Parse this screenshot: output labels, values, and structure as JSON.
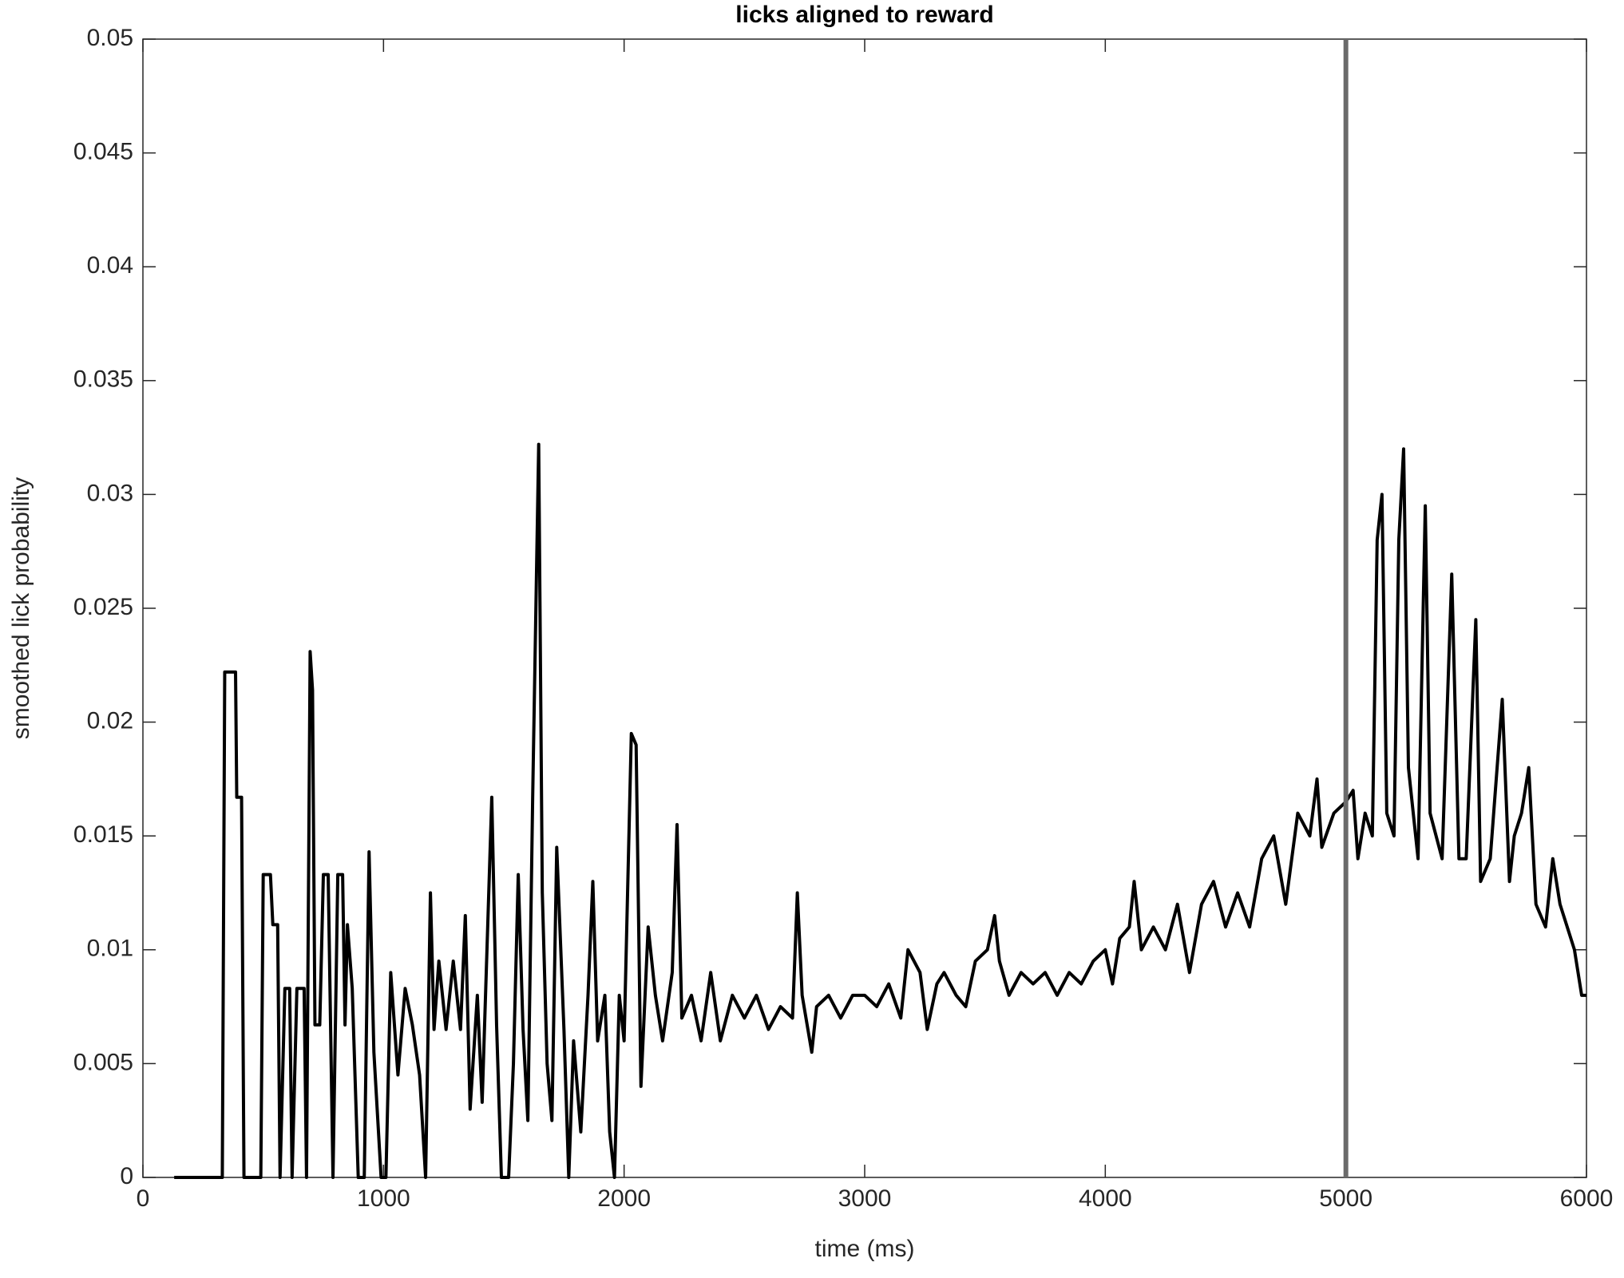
{
  "chart_data": {
    "type": "line",
    "title": "licks aligned to reward",
    "x_label": "time (ms)",
    "y_label": "smoothed lick probability",
    "xlim": [
      0,
      6000
    ],
    "xticks": [
      0,
      1000,
      2000,
      3000,
      4000,
      5000,
      6000
    ],
    "ylim": [
      0,
      0.05
    ],
    "yticks": [
      0,
      0.005,
      0.01,
      0.015,
      0.02,
      0.025,
      0.03,
      0.035,
      0.04,
      0.045,
      0.05
    ],
    "grid": false,
    "reference_line": {
      "x": 5000,
      "color": "#6b6b6b"
    },
    "x": [
      130,
      330,
      340,
      385,
      390,
      410,
      420,
      490,
      500,
      530,
      540,
      560,
      570,
      590,
      610,
      620,
      640,
      670,
      680,
      695,
      705,
      715,
      735,
      750,
      770,
      790,
      810,
      830,
      840,
      850,
      870,
      895,
      920,
      940,
      960,
      990,
      1010,
      1030,
      1060,
      1090,
      1120,
      1150,
      1175,
      1195,
      1210,
      1230,
      1260,
      1290,
      1320,
      1340,
      1360,
      1390,
      1410,
      1430,
      1450,
      1470,
      1490,
      1520,
      1540,
      1560,
      1580,
      1600,
      1620,
      1645,
      1660,
      1680,
      1700,
      1720,
      1750,
      1770,
      1790,
      1820,
      1850,
      1870,
      1890,
      1920,
      1940,
      1960,
      1980,
      2000,
      2030,
      2050,
      2070,
      2100,
      2130,
      2160,
      2200,
      2220,
      2240,
      2280,
      2320,
      2360,
      2400,
      2450,
      2500,
      2550,
      2600,
      2650,
      2700,
      2720,
      2740,
      2780,
      2800,
      2850,
      2900,
      2950,
      3000,
      3050,
      3100,
      3150,
      3180,
      3230,
      3260,
      3300,
      3330,
      3380,
      3420,
      3460,
      3510,
      3540,
      3560,
      3600,
      3650,
      3700,
      3750,
      3800,
      3850,
      3900,
      3950,
      4000,
      4030,
      4060,
      4100,
      4120,
      4150,
      4200,
      4250,
      4300,
      4350,
      4400,
      4450,
      4500,
      4550,
      4600,
      4650,
      4700,
      4750,
      4800,
      4850,
      4880,
      4900,
      4950,
      5000,
      5030,
      5050,
      5080,
      5110,
      5130,
      5150,
      5170,
      5200,
      5220,
      5240,
      5260,
      5300,
      5330,
      5350,
      5400,
      5440,
      5470,
      5500,
      5540,
      5560,
      5600,
      5650,
      5680,
      5700,
      5730,
      5760,
      5790,
      5830,
      5860,
      5890,
      5920,
      5950,
      5980,
      6000
    ],
    "series": [
      {
        "color": "#000000",
        "values": [
          0,
          0,
          0.0222,
          0.0222,
          0.0167,
          0.0167,
          0,
          0,
          0.0133,
          0.0133,
          0.0111,
          0.0111,
          0,
          0.0083,
          0.0083,
          0,
          0.0083,
          0.0083,
          0,
          0.0231,
          0.0214,
          0.0067,
          0.0067,
          0.0133,
          0.0133,
          0,
          0.0133,
          0.0133,
          0.0067,
          0.0111,
          0.0083,
          0,
          0,
          0.0143,
          0.0055,
          0,
          0,
          0.009,
          0.0045,
          0.0083,
          0.0067,
          0.0045,
          0,
          0.0125,
          0.0065,
          0.0095,
          0.0065,
          0.0095,
          0.0065,
          0.0115,
          0.003,
          0.008,
          0.0033,
          0.01,
          0.0167,
          0.0067,
          0,
          0,
          0.005,
          0.0133,
          0.0065,
          0.0025,
          0.0167,
          0.0322,
          0.0125,
          0.005,
          0.0025,
          0.0145,
          0.0065,
          0,
          0.006,
          0.002,
          0.008,
          0.013,
          0.006,
          0.008,
          0.002,
          0,
          0.008,
          0.006,
          0.0195,
          0.019,
          0.004,
          0.011,
          0.008,
          0.006,
          0.009,
          0.0155,
          0.007,
          0.008,
          0.006,
          0.009,
          0.006,
          0.008,
          0.007,
          0.008,
          0.0065,
          0.0075,
          0.007,
          0.0125,
          0.008,
          0.0055,
          0.0075,
          0.008,
          0.007,
          0.008,
          0.008,
          0.0075,
          0.0085,
          0.007,
          0.01,
          0.009,
          0.0065,
          0.0085,
          0.009,
          0.008,
          0.0075,
          0.0095,
          0.01,
          0.0115,
          0.0095,
          0.008,
          0.009,
          0.0085,
          0.009,
          0.008,
          0.009,
          0.0085,
          0.0095,
          0.01,
          0.0085,
          0.0105,
          0.011,
          0.013,
          0.01,
          0.011,
          0.01,
          0.012,
          0.009,
          0.012,
          0.013,
          0.011,
          0.0125,
          0.011,
          0.014,
          0.015,
          0.012,
          0.016,
          0.015,
          0.0175,
          0.0145,
          0.016,
          0.0165,
          0.017,
          0.014,
          0.016,
          0.015,
          0.028,
          0.03,
          0.016,
          0.015,
          0.028,
          0.032,
          0.018,
          0.014,
          0.0295,
          0.016,
          0.014,
          0.0265,
          0.014,
          0.014,
          0.0245,
          0.013,
          0.014,
          0.021,
          0.013,
          0.015,
          0.016,
          0.018,
          0.012,
          0.011,
          0.014,
          0.012,
          0.011,
          0.01,
          0.008,
          0.008
        ]
      }
    ]
  }
}
